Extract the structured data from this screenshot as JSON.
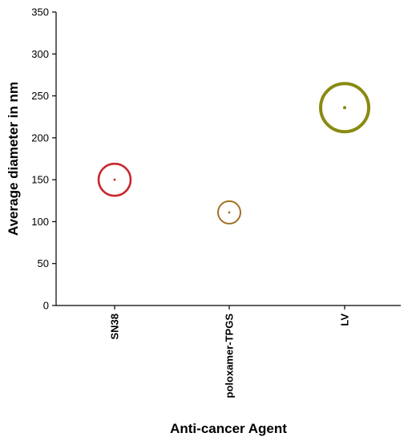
{
  "chart_data": {
    "type": "scatter",
    "title": "",
    "xlabel": "Anti-cancer Agent",
    "ylabel": "Average diameter in nm",
    "ylim": [
      0,
      350
    ],
    "yticks": [
      0,
      50,
      100,
      150,
      200,
      250,
      300,
      350
    ],
    "categories": [
      "SN38",
      "poloxamer-TPGS",
      "LV"
    ],
    "series": [
      {
        "values": [
          150,
          111,
          236
        ],
        "bubble_sizes": [
          20,
          14,
          30
        ],
        "colors": [
          "#c8262c",
          "#a07024",
          "#8a8a12"
        ]
      }
    ],
    "grid": false,
    "legend": "none"
  }
}
